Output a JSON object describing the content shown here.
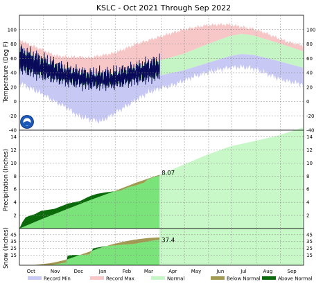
{
  "chart_data": [
    {
      "type": "area",
      "panel": "temperature",
      "title": "KSLC - Oct 2021 Through Sep 2022",
      "ylabel": "Temperature (Deg F)",
      "ylim": [
        -40,
        120
      ],
      "yticks": [
        -40,
        -20,
        0,
        20,
        40,
        60,
        80,
        100
      ],
      "grid": true,
      "colors": {
        "record_min": "#c8c8f5",
        "record_max": "#f7c6c6",
        "normal": "#c5f5c5",
        "observed": "#0a0a5a",
        "observed_fill": "#b0e9b0"
      },
      "record_max": [
        [
          0,
          86
        ],
        [
          15,
          78
        ],
        [
          30,
          72
        ],
        [
          45,
          64
        ],
        [
          60,
          62
        ],
        [
          75,
          62
        ],
        [
          90,
          61
        ],
        [
          105,
          64
        ],
        [
          120,
          67
        ],
        [
          135,
          73
        ],
        [
          150,
          80
        ],
        [
          165,
          85
        ],
        [
          180,
          90
        ],
        [
          195,
          95
        ],
        [
          210,
          100
        ],
        [
          225,
          103
        ],
        [
          240,
          106
        ],
        [
          255,
          107
        ],
        [
          270,
          107
        ],
        [
          285,
          104
        ],
        [
          300,
          101
        ],
        [
          315,
          96
        ],
        [
          330,
          89
        ],
        [
          345,
          83
        ],
        [
          364,
          78
        ]
      ],
      "normal_high": [
        [
          0,
          72
        ],
        [
          30,
          58
        ],
        [
          60,
          45
        ],
        [
          90,
          38
        ],
        [
          120,
          39
        ],
        [
          150,
          48
        ],
        [
          180,
          57
        ],
        [
          210,
          66
        ],
        [
          240,
          79
        ],
        [
          270,
          91
        ],
        [
          285,
          94
        ],
        [
          300,
          92
        ],
        [
          330,
          82
        ],
        [
          364,
          70
        ]
      ],
      "normal_low": [
        [
          0,
          46
        ],
        [
          30,
          36
        ],
        [
          60,
          28
        ],
        [
          90,
          23
        ],
        [
          120,
          23
        ],
        [
          150,
          30
        ],
        [
          180,
          36
        ],
        [
          210,
          43
        ],
        [
          240,
          53
        ],
        [
          270,
          63
        ],
        [
          285,
          66
        ],
        [
          300,
          65
        ],
        [
          330,
          57
        ],
        [
          364,
          47
        ]
      ],
      "record_min": [
        [
          0,
          26
        ],
        [
          15,
          18
        ],
        [
          30,
          10
        ],
        [
          45,
          0
        ],
        [
          60,
          -8
        ],
        [
          75,
          -20
        ],
        [
          90,
          -25
        ],
        [
          105,
          -28
        ],
        [
          120,
          -18
        ],
        [
          135,
          -8
        ],
        [
          150,
          2
        ],
        [
          165,
          12
        ],
        [
          180,
          18
        ],
        [
          195,
          22
        ],
        [
          210,
          28
        ],
        [
          225,
          35
        ],
        [
          240,
          40
        ],
        [
          255,
          44
        ],
        [
          270,
          47
        ],
        [
          285,
          48
        ],
        [
          300,
          46
        ],
        [
          315,
          40
        ],
        [
          330,
          33
        ],
        [
          345,
          28
        ],
        [
          364,
          24
        ]
      ],
      "observed_through_day": 180
    },
    {
      "type": "area",
      "panel": "precipitation",
      "ylabel": "Precipitation (Inches)",
      "ylim": [
        0,
        15
      ],
      "yticks": [
        2,
        4,
        6,
        8,
        10,
        12,
        14
      ],
      "grid": true,
      "value_label": "8.07",
      "normal_cumulative": [
        [
          0,
          0
        ],
        [
          30,
          1.5
        ],
        [
          60,
          2.9
        ],
        [
          90,
          4.3
        ],
        [
          120,
          5.6
        ],
        [
          150,
          7.0
        ],
        [
          180,
          8.2
        ],
        [
          210,
          9.7
        ],
        [
          240,
          11.2
        ],
        [
          270,
          12.5
        ],
        [
          300,
          13.3
        ],
        [
          330,
          14.1
        ],
        [
          364,
          15.4
        ]
      ],
      "observed_cumulative": [
        [
          0,
          0
        ],
        [
          2,
          0.5
        ],
        [
          4,
          1.0
        ],
        [
          8,
          1.7
        ],
        [
          12,
          1.9
        ],
        [
          20,
          2.2
        ],
        [
          28,
          2.7
        ],
        [
          45,
          3.0
        ],
        [
          58,
          3.6
        ],
        [
          62,
          3.8
        ],
        [
          78,
          4.2
        ],
        [
          88,
          4.8
        ],
        [
          92,
          5.0
        ],
        [
          100,
          5.3
        ],
        [
          110,
          5.5
        ],
        [
          130,
          5.8
        ],
        [
          140,
          6.3
        ],
        [
          150,
          6.6
        ],
        [
          155,
          6.8
        ],
        [
          160,
          7.0
        ],
        [
          165,
          7.5
        ],
        [
          172,
          7.8
        ],
        [
          178,
          8.0
        ],
        [
          180,
          8.07
        ]
      ]
    },
    {
      "type": "area",
      "panel": "snowfall",
      "ylabel": "Snow (inches)",
      "ylim": [
        0,
        54
      ],
      "yticks": [
        15,
        25,
        35,
        45
      ],
      "grid": true,
      "value_label": "37.4",
      "normal_cumulative": [
        [
          0,
          0
        ],
        [
          20,
          0.5
        ],
        [
          40,
          3
        ],
        [
          60,
          8
        ],
        [
          75,
          14
        ],
        [
          90,
          20
        ],
        [
          105,
          26
        ],
        [
          120,
          31
        ],
        [
          135,
          35
        ],
        [
          150,
          38
        ],
        [
          165,
          40
        ],
        [
          180,
          41
        ]
      ],
      "observed_cumulative": [
        [
          0,
          0
        ],
        [
          40,
          0
        ],
        [
          45,
          1
        ],
        [
          55,
          3
        ],
        [
          60,
          4
        ],
        [
          62,
          14
        ],
        [
          70,
          15
        ],
        [
          80,
          15
        ],
        [
          90,
          16
        ],
        [
          95,
          25
        ],
        [
          100,
          26
        ],
        [
          110,
          28
        ],
        [
          120,
          29
        ],
        [
          130,
          30
        ],
        [
          145,
          31
        ],
        [
          150,
          32
        ],
        [
          160,
          34
        ],
        [
          170,
          36
        ],
        [
          175,
          37
        ],
        [
          180,
          37.4
        ]
      ]
    }
  ],
  "x_axis": {
    "months": [
      "Oct",
      "Nov",
      "Dec",
      "Jan",
      "Feb",
      "Mar",
      "Apr",
      "May",
      "Jun",
      "Jul",
      "Aug",
      "Sep"
    ]
  },
  "legend": {
    "placement": "bottom",
    "items": [
      {
        "label": "Record Min",
        "color": "#c8c8f5"
      },
      {
        "label": "Record Max",
        "color": "#f7c6c6"
      },
      {
        "label": "Normal",
        "color": "#c5f5c5"
      },
      {
        "label": "Below Normal",
        "color": "#a39a52"
      },
      {
        "label": "Above Normal",
        "color": "#0b6b0b"
      }
    ]
  }
}
